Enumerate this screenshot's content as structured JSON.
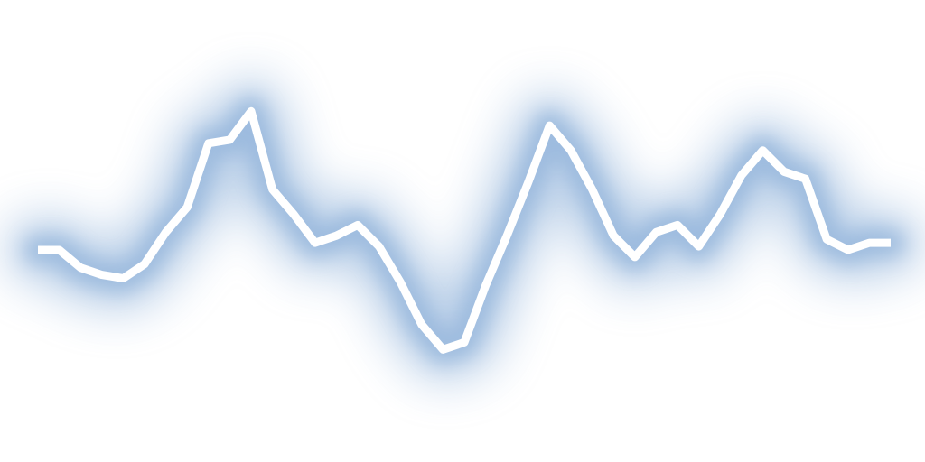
{
  "image": {
    "background_color": "#ffffff",
    "line_color": "#ffffff",
    "glow_color": "#7ea6d4",
    "line_points": [
      [
        0,
        0.0
      ],
      [
        1,
        0.0
      ],
      [
        2,
        -0.05
      ],
      [
        3,
        -0.07
      ],
      [
        4,
        -0.08
      ],
      [
        5,
        -0.04
      ],
      [
        6,
        0.05
      ],
      [
        7,
        0.12
      ],
      [
        8,
        0.3
      ],
      [
        9,
        0.31
      ],
      [
        10,
        0.39
      ],
      [
        11,
        0.17
      ],
      [
        12,
        0.1
      ],
      [
        13,
        0.02
      ],
      [
        14,
        0.04
      ],
      [
        15,
        0.07
      ],
      [
        16,
        0.01
      ],
      [
        17,
        -0.09
      ],
      [
        18,
        -0.21
      ],
      [
        19,
        -0.28
      ],
      [
        20,
        -0.26
      ],
      [
        21,
        -0.1
      ],
      [
        22,
        0.04
      ],
      [
        23,
        0.19
      ],
      [
        24,
        0.35
      ],
      [
        25,
        0.28
      ],
      [
        26,
        0.17
      ],
      [
        27,
        0.04
      ],
      [
        28,
        -0.02
      ],
      [
        29,
        0.05
      ],
      [
        30,
        0.07
      ],
      [
        31,
        0.01
      ],
      [
        32,
        0.1
      ],
      [
        33,
        0.21
      ],
      [
        34,
        0.28
      ],
      [
        35,
        0.22
      ],
      [
        36,
        0.2
      ],
      [
        37,
        0.03
      ],
      [
        38,
        0.0
      ],
      [
        39,
        0.02
      ],
      [
        40,
        0.02
      ]
    ]
  }
}
